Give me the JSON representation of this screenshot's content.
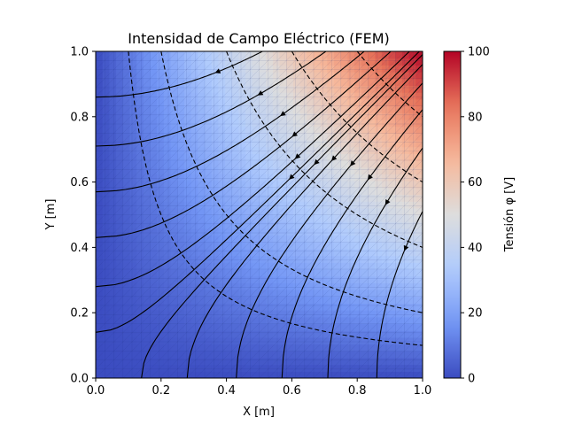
{
  "chart_data": {
    "type": "heatmap",
    "title": "Intensidad de Campo Eléctrico (FEM)",
    "xlabel": "X [m]",
    "ylabel": "Y [m]",
    "xlim": [
      0.0,
      1.0
    ],
    "ylim": [
      0.0,
      1.0
    ],
    "x_ticks": [
      "0.0",
      "0.2",
      "0.4",
      "0.6",
      "0.8",
      "1.0"
    ],
    "y_ticks": [
      "0.0",
      "0.2",
      "0.4",
      "0.6",
      "0.8",
      "1.0"
    ],
    "colorbar": {
      "label": "Tensión φ [V]",
      "range": [
        0,
        100
      ],
      "ticks": [
        "0",
        "20",
        "40",
        "60",
        "80",
        "100"
      ],
      "colormap": "coolwarm",
      "colors": [
        "#3b4cc0",
        "#7396f5",
        "#b0cbfc",
        "#dddddd",
        "#f6b89b",
        "#e7745b",
        "#b40426"
      ]
    },
    "field": "phi = 100 * x * y",
    "equipotential_levels": [
      10,
      20,
      40,
      60,
      80
    ],
    "equipotential_style": "dashed",
    "streamlines": {
      "left_edge_starts_y": [
        0.14,
        0.28,
        0.43,
        0.57,
        0.71,
        0.86
      ],
      "bottom_edge_starts_x": [
        0.14,
        0.28,
        0.43,
        0.57,
        0.71,
        0.86
      ],
      "arrow_direction": "toward lower potential"
    },
    "mesh": "triangular"
  }
}
